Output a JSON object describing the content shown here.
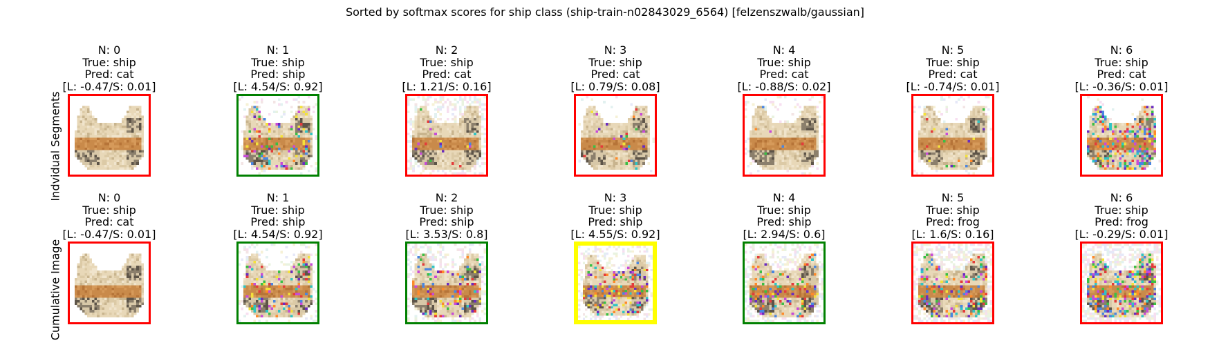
{
  "title": "Sorted by softmax scores for ship class (ship-train-n02843029_6564) [felzenszwalb/gaussian]",
  "row_labels": [
    "Indvidual Segments",
    "Cumulative Image"
  ],
  "status_colors": {
    "correct": "#008000",
    "incorrect": "#ff0000",
    "best": "#ffff00"
  },
  "rows": [
    {
      "name": "Indvidual Segments",
      "panels": [
        {
          "n": "N: 0",
          "true": "True: ship",
          "pred": "Pred: cat",
          "score": "[L: -0.47/S: 0.01]",
          "status": "incorrect",
          "noise": 0.0,
          "colored": 0.0
        },
        {
          "n": "N: 1",
          "true": "True: ship",
          "pred": "Pred: ship",
          "score": "[L: 4.54/S: 0.92]",
          "status": "correct",
          "noise": 0.15,
          "colored": 0.3
        },
        {
          "n": "N: 2",
          "true": "True: ship",
          "pred": "Pred: cat",
          "score": "[L: 1.21/S: 0.16]",
          "status": "incorrect",
          "noise": 0.35,
          "colored": 0.05
        },
        {
          "n": "N: 3",
          "true": "True: ship",
          "pred": "Pred: cat",
          "score": "[L: 0.79/S: 0.08]",
          "status": "incorrect",
          "noise": 0.05,
          "colored": 0.12
        },
        {
          "n": "N: 4",
          "true": "True: ship",
          "pred": "Pred: cat",
          "score": "[L: -0.88/S: 0.02]",
          "status": "incorrect",
          "noise": 0.12,
          "colored": 0.03
        },
        {
          "n": "N: 5",
          "true": "True: ship",
          "pred": "Pred: cat",
          "score": "[L: -0.74/S: 0.01]",
          "status": "incorrect",
          "noise": 0.08,
          "colored": 0.06
        },
        {
          "n": "N: 6",
          "true": "True: ship",
          "pred": "Pred: cat",
          "score": "[L: -0.36/S: 0.01]",
          "status": "incorrect",
          "noise": 0.02,
          "colored": 0.55
        }
      ]
    },
    {
      "name": "Cumulative Image",
      "panels": [
        {
          "n": "N: 0",
          "true": "True: ship",
          "pred": "Pred: cat",
          "score": "[L: -0.47/S: 0.01]",
          "status": "incorrect",
          "noise": 0.0,
          "colored": 0.0
        },
        {
          "n": "N: 1",
          "true": "True: ship",
          "pred": "Pred: ship",
          "score": "[L: 4.54/S: 0.92]",
          "status": "correct",
          "noise": 0.15,
          "colored": 0.3
        },
        {
          "n": "N: 2",
          "true": "True: ship",
          "pred": "Pred: ship",
          "score": "[L: 3.53/S: 0.8]",
          "status": "correct",
          "noise": 0.3,
          "colored": 0.32
        },
        {
          "n": "N: 3",
          "true": "True: ship",
          "pred": "Pred: ship",
          "score": "[L: 4.55/S: 0.92]",
          "status": "best",
          "noise": 0.3,
          "colored": 0.36
        },
        {
          "n": "N: 4",
          "true": "True: ship",
          "pred": "Pred: ship",
          "score": "[L: 2.94/S: 0.6]",
          "status": "correct",
          "noise": 0.42,
          "colored": 0.38
        },
        {
          "n": "N: 5",
          "true": "True: ship",
          "pred": "Pred: frog",
          "score": "[L: 1.6/S: 0.16]",
          "status": "incorrect",
          "noise": 0.5,
          "colored": 0.42
        },
        {
          "n": "N: 6",
          "true": "True: ship",
          "pred": "Pred: frog",
          "score": "[L: -0.29/S: 0.01]",
          "status": "incorrect",
          "noise": 0.55,
          "colored": 0.62
        }
      ]
    }
  ]
}
